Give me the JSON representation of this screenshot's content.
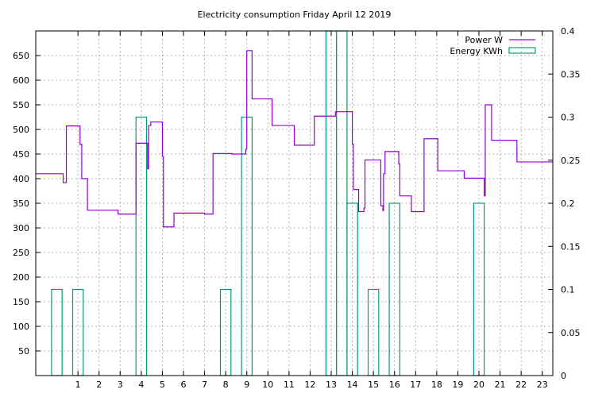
{
  "chart_data": {
    "type": "bar",
    "title": "Electricity consumption Friday April 12 2019",
    "xlabel": "",
    "ylabel": "",
    "y2label": "",
    "grid": true,
    "legend_position": "top-right",
    "xlim": [
      -1,
      23.5
    ],
    "ylim": [
      0,
      700
    ],
    "y2lim": [
      0,
      0.4
    ],
    "x_ticks": [
      "1",
      "2",
      "3",
      "4",
      "5",
      "6",
      "7",
      "8",
      "9",
      "10",
      "11",
      "12",
      "13",
      "14",
      "15",
      "16",
      "17",
      "18",
      "19",
      "20",
      "21",
      "22",
      "23"
    ],
    "y_ticks": [
      "50",
      "100",
      "150",
      "200",
      "250",
      "300",
      "350",
      "400",
      "450",
      "500",
      "550",
      "600",
      "650"
    ],
    "y2_ticks": [
      "0",
      "0.05",
      "0.1",
      "0.15",
      "0.2",
      "0.25",
      "0.3",
      "0.35",
      "0.4"
    ],
    "series": [
      {
        "name": "Power W",
        "color": "#9400d3",
        "kind": "step-line",
        "points": [
          [
            -1,
            410
          ],
          [
            0.3,
            410
          ],
          [
            0.3,
            392
          ],
          [
            0.45,
            392
          ],
          [
            0.45,
            507
          ],
          [
            1.1,
            507
          ],
          [
            1.1,
            470
          ],
          [
            1.18,
            470
          ],
          [
            1.18,
            400
          ],
          [
            1.45,
            400
          ],
          [
            1.45,
            336
          ],
          [
            2.9,
            336
          ],
          [
            2.9,
            328
          ],
          [
            3.75,
            328
          ],
          [
            3.75,
            472
          ],
          [
            4.3,
            472
          ],
          [
            4.3,
            420
          ],
          [
            4.35,
            420
          ],
          [
            4.35,
            508
          ],
          [
            4.45,
            508
          ],
          [
            4.45,
            515
          ],
          [
            5.0,
            515
          ],
          [
            5.0,
            445
          ],
          [
            5.05,
            445
          ],
          [
            5.05,
            302
          ],
          [
            5.55,
            302
          ],
          [
            5.55,
            330
          ],
          [
            7.0,
            330
          ],
          [
            7.0,
            328
          ],
          [
            7.4,
            328
          ],
          [
            7.4,
            451
          ],
          [
            8.3,
            451
          ],
          [
            8.3,
            450
          ],
          [
            8.95,
            450
          ],
          [
            8.95,
            460
          ],
          [
            9.0,
            460
          ],
          [
            9.0,
            660
          ],
          [
            9.25,
            660
          ],
          [
            9.25,
            562
          ],
          [
            10.2,
            562
          ],
          [
            10.2,
            508
          ],
          [
            11.25,
            508
          ],
          [
            11.25,
            468
          ],
          [
            12.2,
            468
          ],
          [
            12.2,
            527
          ],
          [
            13.2,
            527
          ],
          [
            13.2,
            536
          ],
          [
            14.0,
            536
          ],
          [
            14.0,
            470
          ],
          [
            14.05,
            470
          ],
          [
            14.05,
            378
          ],
          [
            14.3,
            378
          ],
          [
            14.3,
            333
          ],
          [
            14.55,
            333
          ],
          [
            14.55,
            340
          ],
          [
            14.6,
            340
          ],
          [
            14.6,
            438
          ],
          [
            15.35,
            438
          ],
          [
            15.35,
            345
          ],
          [
            15.45,
            345
          ],
          [
            15.45,
            335
          ],
          [
            15.48,
            335
          ],
          [
            15.48,
            410
          ],
          [
            15.55,
            410
          ],
          [
            15.55,
            455
          ],
          [
            16.2,
            455
          ],
          [
            16.2,
            430
          ],
          [
            16.25,
            430
          ],
          [
            16.25,
            365
          ],
          [
            16.8,
            365
          ],
          [
            16.8,
            333
          ],
          [
            17.4,
            333
          ],
          [
            17.4,
            481
          ],
          [
            18.05,
            481
          ],
          [
            18.05,
            416
          ],
          [
            19.3,
            416
          ],
          [
            19.3,
            401
          ],
          [
            20.25,
            401
          ],
          [
            20.25,
            365
          ],
          [
            20.3,
            365
          ],
          [
            20.3,
            550
          ],
          [
            20.6,
            550
          ],
          [
            20.6,
            478
          ],
          [
            21.8,
            478
          ],
          [
            21.8,
            434
          ],
          [
            23.5,
            434
          ]
        ]
      },
      {
        "name": "Energy KWh",
        "color": "#009e73",
        "kind": "bars",
        "axis": "y2",
        "bars": [
          {
            "x": 0,
            "value": 0.1
          },
          {
            "x": 1,
            "value": 0.1
          },
          {
            "x": 4,
            "value": 0.3
          },
          {
            "x": 8,
            "value": 0.1
          },
          {
            "x": 9,
            "value": 0.3
          },
          {
            "x": 13,
            "value": 0.4
          },
          {
            "x": 13.5,
            "value": 0.4
          },
          {
            "x": 14,
            "value": 0.2
          },
          {
            "x": 15,
            "value": 0.1
          },
          {
            "x": 16,
            "value": 0.2
          },
          {
            "x": 20,
            "value": 0.2
          }
        ]
      }
    ]
  }
}
